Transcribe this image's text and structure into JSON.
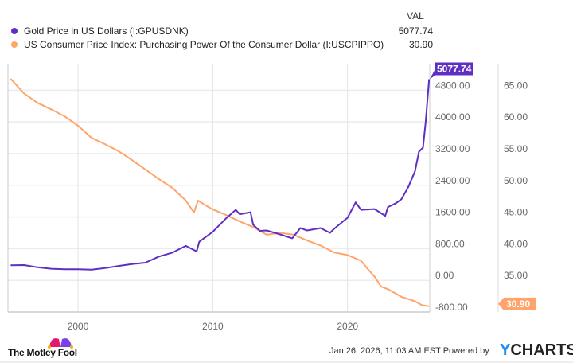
{
  "legend": {
    "value_header": "VAL",
    "items": [
      {
        "label": "Gold Price in US Dollars (I:GPUSDNK)",
        "value": "5077.74",
        "color": "#5f2fc4"
      },
      {
        "label": "US Consumer Price Index: Purchasing Power Of the Consumer Dollar (I:USCPIPPO)",
        "value": "30.90",
        "color": "#ffa46b"
      }
    ]
  },
  "chart_data": {
    "type": "line",
    "title": "",
    "xlabel": "",
    "x_ticks": [
      "2000",
      "2010",
      "2020"
    ],
    "xlim": [
      1994.8,
      2026.1
    ],
    "grid": true,
    "legend_position": "top-left",
    "axes": {
      "left": {
        "ticks": [
          "-800.00",
          "0.00",
          "800.00",
          "1600.00",
          "2400.00",
          "3200.00",
          "4000.00",
          "4800.00"
        ],
        "ylim": [
          -800,
          5470
        ]
      },
      "right": {
        "ticks": [
          "35.00",
          "40.00",
          "45.00",
          "50.00",
          "55.00",
          "60.00",
          "65.00"
        ],
        "ylim": [
          30.0,
          69.2
        ]
      }
    },
    "series": [
      {
        "name": "Gold Price in US Dollars (I:GPUSDNK)",
        "axis": "left",
        "color": "#5f2fc4",
        "last_label": "5077.74",
        "x": [
          1995,
          1996,
          1997,
          1998,
          1999,
          2000,
          2001,
          2002,
          2003,
          2004,
          2005,
          2006,
          2007,
          2008,
          2008.8,
          2009,
          2010,
          2011,
          2011.7,
          2012,
          2012.8,
          2013,
          2013.5,
          2014,
          2015,
          2015.9,
          2016.5,
          2017,
          2018,
          2018.7,
          2019,
          2019.7,
          2020,
          2020.6,
          2021,
          2022,
          2022.8,
          2023,
          2023.6,
          2024,
          2024.5,
          2025,
          2025.3,
          2025.6,
          2025.8,
          2026.05
        ],
        "y": [
          382,
          385,
          330,
          294,
          280,
          280,
          270,
          310,
          363,
          410,
          445,
          600,
          700,
          870,
          730,
          975,
          1225,
          1570,
          1780,
          1670,
          1720,
          1400,
          1250,
          1260,
          1160,
          1060,
          1320,
          1260,
          1320,
          1200,
          1300,
          1500,
          1580,
          1970,
          1780,
          1800,
          1630,
          1850,
          1950,
          2050,
          2350,
          2750,
          3250,
          3350,
          4000,
          5077.74
        ]
      },
      {
        "name": "US Consumer Price Index: Purchasing Power Of the Consumer Dollar (I:USCPIPPO)",
        "axis": "right",
        "color": "#ffa46b",
        "last_label": "30.90",
        "x": [
          1995,
          1996,
          1997,
          1998,
          1999,
          2000,
          2001,
          2002,
          2003,
          2004,
          2005,
          2006,
          2007,
          2008,
          2008.6,
          2008.9,
          2009.5,
          2010,
          2011,
          2012,
          2013,
          2014,
          2015,
          2016,
          2017,
          2018,
          2019,
          2020,
          2021,
          2021.5,
          2022,
          2022.5,
          2023,
          2024,
          2025,
          2025.5,
          2026.05
        ],
        "y": [
          66.8,
          64.5,
          63.0,
          62.0,
          60.9,
          59.4,
          57.5,
          56.5,
          55.4,
          54.0,
          52.5,
          51.0,
          49.6,
          47.6,
          45.7,
          47.6,
          46.8,
          46.2,
          45.3,
          44.3,
          43.4,
          42.2,
          42.5,
          42.2,
          41.3,
          40.5,
          39.4,
          39.0,
          38.1,
          36.8,
          35.6,
          34.0,
          33.6,
          32.4,
          31.7,
          31.1,
          30.9
        ]
      }
    ]
  },
  "footer": {
    "brand": "The Motley Fool",
    "timestamp": "Jan 26, 2026, 11:03 AM EST Powered by",
    "ycharts_y": "Y",
    "ycharts_rest": "CHARTS"
  }
}
